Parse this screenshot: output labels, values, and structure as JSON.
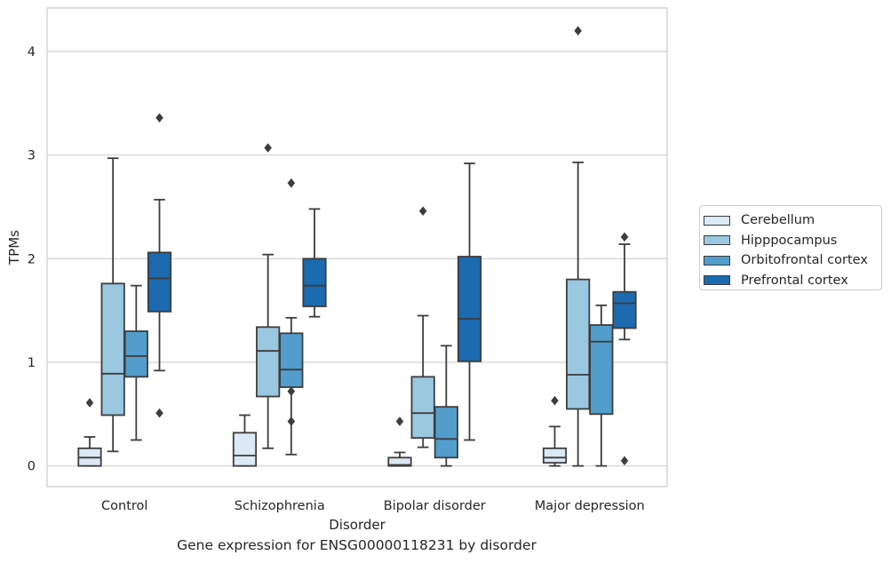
{
  "chart_data": {
    "type": "box",
    "title": "Gene expression for ENSG00000118231 by disorder",
    "xlabel": "Disorder",
    "ylabel": "TPMs",
    "ylim": [
      -0.2,
      4.42
    ],
    "yticks": [
      0,
      1,
      2,
      3,
      4
    ],
    "grid": "horizontal",
    "legend_position": "right",
    "categories": [
      "Control",
      "Schizophrenia",
      "Bipolar disorder",
      "Major depression"
    ],
    "series": [
      {
        "name": "Cerebellum",
        "color": "#dbe9f6",
        "boxes": [
          {
            "whislo": 0.0,
            "q1": 0.0,
            "med": 0.08,
            "q3": 0.17,
            "whishi": 0.28,
            "fliers": [
              0.61
            ]
          },
          {
            "whislo": 0.0,
            "q1": 0.0,
            "med": 0.1,
            "q3": 0.32,
            "whishi": 0.49,
            "fliers": []
          },
          {
            "whislo": 0.0,
            "q1": 0.0,
            "med": 0.01,
            "q3": 0.08,
            "whishi": 0.13,
            "fliers": [
              0.43
            ]
          },
          {
            "whislo": 0.0,
            "q1": 0.03,
            "med": 0.08,
            "q3": 0.17,
            "whishi": 0.38,
            "fliers": [
              0.63
            ]
          }
        ]
      },
      {
        "name": "Hipppocampus",
        "color": "#9ac8e0",
        "boxes": [
          {
            "whislo": 0.14,
            "q1": 0.49,
            "med": 0.89,
            "q3": 1.76,
            "whishi": 2.97,
            "fliers": []
          },
          {
            "whislo": 0.17,
            "q1": 0.67,
            "med": 1.11,
            "q3": 1.34,
            "whishi": 2.04,
            "fliers": [
              3.07
            ]
          },
          {
            "whislo": 0.18,
            "q1": 0.27,
            "med": 0.51,
            "q3": 0.86,
            "whishi": 1.45,
            "fliers": [
              2.46
            ]
          },
          {
            "whislo": 0.0,
            "q1": 0.55,
            "med": 0.88,
            "q3": 1.8,
            "whishi": 2.93,
            "fliers": [
              4.2
            ]
          }
        ]
      },
      {
        "name": "Orbitofrontal cortex",
        "color": "#529dcc",
        "boxes": [
          {
            "whislo": 0.25,
            "q1": 0.86,
            "med": 1.06,
            "q3": 1.3,
            "whishi": 1.74,
            "fliers": []
          },
          {
            "whislo": 0.11,
            "q1": 0.76,
            "med": 0.93,
            "q3": 1.28,
            "whishi": 1.43,
            "fliers": [
              2.73,
              0.72,
              0.43
            ]
          },
          {
            "whislo": 0.0,
            "q1": 0.08,
            "med": 0.26,
            "q3": 0.57,
            "whishi": 1.16,
            "fliers": []
          },
          {
            "whislo": 0.0,
            "q1": 0.5,
            "med": 1.2,
            "q3": 1.36,
            "whishi": 1.55,
            "fliers": []
          }
        ]
      },
      {
        "name": "Prefrontal cortex",
        "color": "#1c6aaf",
        "boxes": [
          {
            "whislo": 0.92,
            "q1": 1.49,
            "med": 1.81,
            "q3": 2.06,
            "whishi": 2.57,
            "fliers": [
              3.36,
              0.51
            ]
          },
          {
            "whislo": 1.44,
            "q1": 1.54,
            "med": 1.74,
            "q3": 2.0,
            "whishi": 2.48,
            "fliers": []
          },
          {
            "whislo": 0.25,
            "q1": 1.01,
            "med": 1.42,
            "q3": 2.02,
            "whishi": 2.92,
            "fliers": []
          },
          {
            "whislo": 1.22,
            "q1": 1.33,
            "med": 1.57,
            "q3": 1.68,
            "whishi": 2.14,
            "fliers": [
              2.21,
              0.05
            ]
          }
        ]
      }
    ]
  }
}
